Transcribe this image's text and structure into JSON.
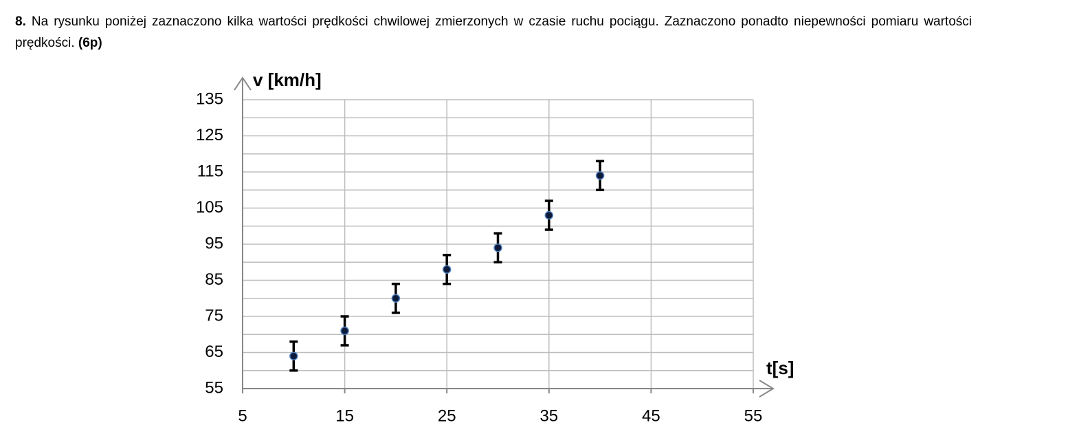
{
  "question": {
    "number": "8.",
    "text": "Na rysunku poniżej zaznaczono kilka wartości prędkości chwilowej zmierzonych w czasie ruchu pociągu. Zaznaczono ponadto niepewności pomiaru wartości prędkości.",
    "points": "(6p)"
  },
  "chart_data": {
    "type": "scatter",
    "y_label": "v [km/h]",
    "x_label": "t[s]",
    "x": [
      10,
      15,
      20,
      25,
      30,
      35,
      40
    ],
    "series": [
      {
        "values": [
          64,
          71,
          80,
          88,
          94,
          103,
          114
        ],
        "errors": [
          4,
          4,
          4,
          4,
          4,
          4,
          4
        ],
        "color": "#0d1a3a"
      }
    ],
    "xlim": [
      5,
      55
    ],
    "xticks": [
      5,
      15,
      25,
      35,
      45,
      55
    ],
    "ylim": [
      55,
      135
    ],
    "yticks": [
      55,
      65,
      75,
      85,
      95,
      105,
      115,
      125,
      135
    ],
    "yminorticks": [
      60,
      70,
      80,
      90,
      100,
      110,
      120,
      130
    ],
    "grid": true
  }
}
